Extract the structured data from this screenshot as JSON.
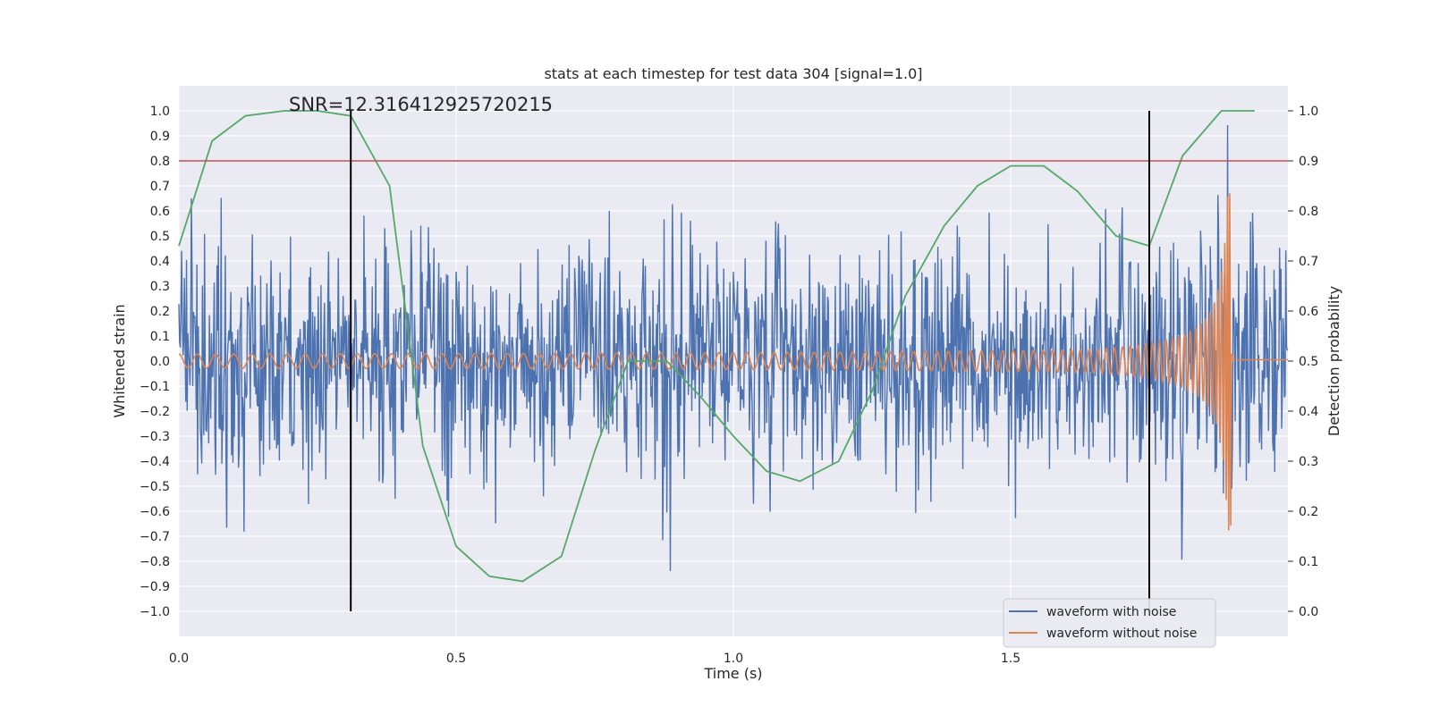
{
  "chart_data": {
    "type": "line",
    "title": "stats at each timestep for test data 304 [signal=1.0]",
    "annotation": "SNR=12.316412925720215",
    "xlabel": "Time (s)",
    "ylabel_left": "Whitened strain",
    "ylabel_right": "Detection probability",
    "xlim": [
      0,
      2.0
    ],
    "ylim_left": [
      -1.1,
      1.1
    ],
    "ylim_right": [
      -0.05,
      1.05
    ],
    "x_ticks": [
      0.0,
      0.5,
      1.0,
      1.5
    ],
    "x_tick_labels": [
      "0.0",
      "0.5",
      "1.0",
      "1.5"
    ],
    "y_left_ticks": [
      -1.0,
      -0.9,
      -0.8,
      -0.7,
      -0.6,
      -0.5,
      -0.4,
      -0.3,
      -0.2,
      -0.1,
      0.0,
      0.1,
      0.2,
      0.3,
      0.4,
      0.5,
      0.6,
      0.7,
      0.8,
      0.9,
      1.0
    ],
    "y_left_tick_labels": [
      "−1.0",
      "−0.9",
      "−0.8",
      "−0.7",
      "−0.6",
      "−0.5",
      "−0.4",
      "−0.3",
      "−0.2",
      "−0.1",
      "0.0",
      "0.1",
      "0.2",
      "0.3",
      "0.4",
      "0.5",
      "0.6",
      "0.7",
      "0.8",
      "0.9",
      "1.0"
    ],
    "y_right_ticks": [
      0.0,
      0.1,
      0.2,
      0.3,
      0.4,
      0.5,
      0.6,
      0.7,
      0.8,
      0.9,
      1.0
    ],
    "y_right_tick_labels": [
      "0.0",
      "0.1",
      "0.2",
      "0.3",
      "0.4",
      "0.5",
      "0.6",
      "0.7",
      "0.8",
      "0.9",
      "1.0"
    ],
    "grid": true,
    "legend_position": "lower-right",
    "detection_threshold": {
      "value": 0.9,
      "color": "#c44e52"
    },
    "vertical_markers": {
      "x": [
        0.31,
        1.75
      ],
      "color": "#000000",
      "y_range_right": [
        0.0,
        1.0
      ]
    },
    "series": [
      {
        "name": "waveform with noise",
        "color": "#4c72b0",
        "axis": "left",
        "kind": "noise",
        "amplitude_typical": 0.45,
        "amplitude_peak": 0.97,
        "sample_count": 1600
      },
      {
        "name": "waveform without noise",
        "color": "#dd8452",
        "axis": "left",
        "kind": "chirp",
        "merger_time": 1.9,
        "peak_amplitude": 0.68
      },
      {
        "color": "#55a868",
        "axis": "right",
        "x": [
          0.0,
          0.06,
          0.12,
          0.19,
          0.25,
          0.31,
          0.38,
          0.44,
          0.5,
          0.56,
          0.62,
          0.69,
          0.75,
          0.81,
          0.88,
          0.94,
          1.0,
          1.06,
          1.12,
          1.19,
          1.25,
          1.31,
          1.38,
          1.44,
          1.5,
          1.56,
          1.62,
          1.69,
          1.75,
          1.81,
          1.88,
          1.94
        ],
        "y": [
          0.73,
          0.94,
          0.99,
          1.0,
          1.0,
          0.99,
          0.85,
          0.33,
          0.13,
          0.07,
          0.06,
          0.11,
          0.32,
          0.5,
          0.5,
          0.43,
          0.35,
          0.28,
          0.26,
          0.3,
          0.44,
          0.63,
          0.77,
          0.85,
          0.89,
          0.89,
          0.84,
          0.75,
          0.73,
          0.91,
          1.0,
          1.0
        ]
      }
    ]
  }
}
